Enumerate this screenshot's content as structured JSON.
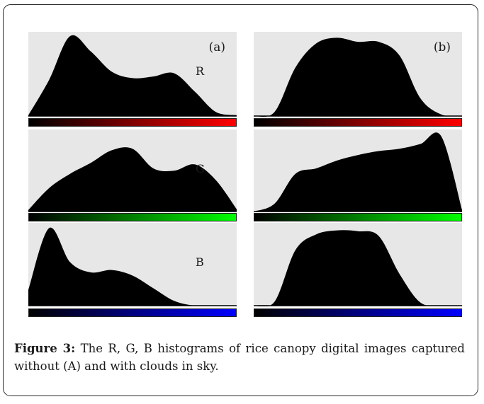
{
  "figure": {
    "caption_label": "Figure 3:",
    "caption_text": " The R, G, B histograms of rice canopy digital images captured without (A) and with clouds in sky."
  },
  "chart_data": [
    {
      "type": "area",
      "panel": "(a)",
      "channel": "R",
      "bar_color": "#ff0000",
      "x": [
        0,
        10,
        20,
        30,
        40,
        50,
        60,
        70,
        80,
        90,
        100
      ],
      "values": [
        0.01,
        0.45,
        0.99,
        0.8,
        0.55,
        0.47,
        0.49,
        0.53,
        0.3,
        0.05,
        0.01
      ]
    },
    {
      "type": "area",
      "panel": "(b)",
      "channel": "",
      "bar_color": "#ff0000",
      "x": [
        0,
        10,
        20,
        30,
        40,
        50,
        60,
        70,
        80,
        90,
        100
      ],
      "values": [
        0.0,
        0.05,
        0.6,
        0.9,
        0.97,
        0.92,
        0.92,
        0.75,
        0.22,
        0.02,
        0.0
      ]
    },
    {
      "type": "area",
      "panel": "",
      "channel": "G",
      "bar_color": "#00ff00",
      "x": [
        0,
        10,
        20,
        30,
        40,
        50,
        60,
        70,
        80,
        90,
        100
      ],
      "values": [
        0.02,
        0.3,
        0.48,
        0.62,
        0.78,
        0.8,
        0.55,
        0.52,
        0.6,
        0.4,
        0.03
      ]
    },
    {
      "type": "area",
      "panel": "",
      "channel": "",
      "bar_color": "#00ff00",
      "x": [
        0,
        10,
        20,
        30,
        40,
        50,
        60,
        70,
        80,
        90,
        100
      ],
      "values": [
        0.0,
        0.1,
        0.48,
        0.55,
        0.65,
        0.72,
        0.77,
        0.8,
        0.86,
        0.96,
        0.02
      ]
    },
    {
      "type": "area",
      "panel": "",
      "channel": "B",
      "bar_color": "#0000ff",
      "x": [
        0,
        10,
        20,
        30,
        40,
        50,
        60,
        70,
        80,
        90,
        100
      ],
      "values": [
        0.2,
        0.98,
        0.55,
        0.42,
        0.45,
        0.38,
        0.22,
        0.06,
        0.0,
        0.0,
        0.0
      ]
    },
    {
      "type": "area",
      "panel": "",
      "channel": "",
      "bar_color": "#0000ff",
      "x": [
        0,
        10,
        20,
        30,
        40,
        50,
        60,
        70,
        80,
        90,
        100
      ],
      "values": [
        0.0,
        0.05,
        0.7,
        0.9,
        0.95,
        0.94,
        0.88,
        0.4,
        0.04,
        0.0,
        0.0
      ]
    }
  ]
}
